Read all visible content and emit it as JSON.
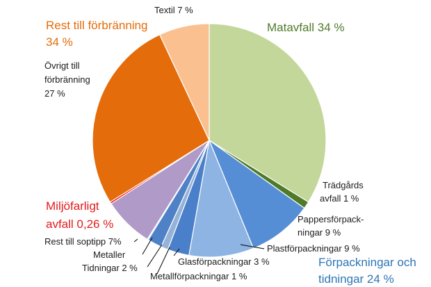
{
  "chart_data": {
    "type": "pie",
    "title": "",
    "start_angle_deg": 0,
    "direction": "clockwise",
    "slices": [
      {
        "label": "Matavfall",
        "value": 34,
        "color": "#c4d79b"
      },
      {
        "label": "Trädgårdsavfall",
        "value": 1,
        "color": "#4f7a28"
      },
      {
        "label": "Pappersförpackningar",
        "value": 9,
        "color": "#558ed5"
      },
      {
        "label": "Plastförpackningar",
        "value": 9,
        "color": "#8db4e2"
      },
      {
        "label": "Glasförpackningar",
        "value": 3,
        "color": "#4a7fc9"
      },
      {
        "label": "Metallförpackningar",
        "value": 1,
        "color": "#95b3d7"
      },
      {
        "label": "Tidningar",
        "value": 2,
        "color": "#4f81c7"
      },
      {
        "label": "Metaller",
        "value": 0.15,
        "color": "#b4c7e7"
      },
      {
        "label": "Rest till soptipp",
        "value": 7,
        "color": "#b09ac8"
      },
      {
        "label": "Miljöfarligt avfall",
        "value": 0.26,
        "color": "#ff0000"
      },
      {
        "label": "Övrigt till förbränning",
        "value": 27,
        "color": "#e46c0a"
      },
      {
        "label": "Textil",
        "value": 7,
        "color": "#fac090"
      }
    ],
    "labels": {
      "matavfall": "Matavfall 34 %",
      "tradgard_1": "Trädgårds",
      "tradgard_2": "avfall 1 %",
      "papper_1": "Pappersförpack-",
      "papper_2": "ningar 9 %",
      "plast": "Plastförpackningar 9 %",
      "glas": "Glasförpackningar 3 %",
      "metallforp": "Metallförpackningar 1 %",
      "tidningar": "Tidningar 2 %",
      "metaller": "Metaller",
      "soptipp": "Rest till soptipp 7%",
      "miljo_1": "Miljöfarligt",
      "miljo_2": "avfall 0,26 %",
      "ovrigt_1": "Övrigt till",
      "ovrigt_2": "förbränning",
      "ovrigt_3": "27 %",
      "rest_1": "Rest till förbränning",
      "rest_2": "34 %",
      "textil": "Textil 7 %",
      "forp_1": "Förpackningar och",
      "forp_2": "tidningar 24 %"
    },
    "label_colors": {
      "matavfall": "#4f7a28",
      "rest": "#e46c0a",
      "miljo": "#e31a1c",
      "forp": "#2e75b6"
    }
  }
}
